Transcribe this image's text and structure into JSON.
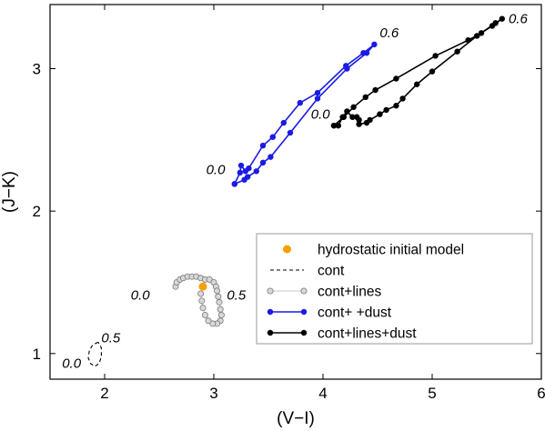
{
  "chart_data": {
    "type": "line",
    "xlabel": "(V−I)",
    "ylabel": "(J−K)",
    "xlim": [
      1.5,
      6.0
    ],
    "ylim": [
      0.82,
      3.45
    ],
    "xticks": [
      2,
      3,
      4,
      5,
      6
    ],
    "yticks": [
      1,
      2,
      3
    ],
    "grid": false,
    "legend_position": "bottom-right",
    "series": [
      {
        "name": "hydrostatic initial model",
        "style": "marker",
        "color": "#f5a000",
        "points": [
          [
            2.9,
            1.47
          ]
        ]
      },
      {
        "name": "cont",
        "style": "dashed",
        "color": "#000000",
        "points": [
          [
            1.94,
            1.08
          ],
          [
            1.89,
            1.06
          ],
          [
            1.86,
            1.02
          ],
          [
            1.85,
            0.97
          ],
          [
            1.87,
            0.93
          ],
          [
            1.91,
            0.91
          ],
          [
            1.95,
            0.93
          ],
          [
            1.97,
            0.98
          ],
          [
            1.97,
            1.04
          ],
          [
            1.94,
            1.08
          ]
        ]
      },
      {
        "name": "cont+lines",
        "style": "line-open-markers",
        "color": "#a8a8a8",
        "points": [
          [
            2.65,
            1.47
          ],
          [
            2.66,
            1.5
          ],
          [
            2.69,
            1.52
          ],
          [
            2.72,
            1.53
          ],
          [
            2.76,
            1.54
          ],
          [
            2.8,
            1.54
          ],
          [
            2.84,
            1.54
          ],
          [
            2.88,
            1.53
          ],
          [
            2.92,
            1.52
          ],
          [
            2.96,
            1.52
          ],
          [
            3.0,
            1.5
          ],
          [
            3.02,
            1.47
          ],
          [
            3.03,
            1.44
          ],
          [
            3.04,
            1.4
          ],
          [
            3.05,
            1.36
          ],
          [
            3.06,
            1.31
          ],
          [
            3.07,
            1.27
          ],
          [
            3.06,
            1.23
          ],
          [
            3.03,
            1.21
          ],
          [
            2.99,
            1.21
          ],
          [
            2.95,
            1.23
          ],
          [
            2.92,
            1.27
          ],
          [
            2.9,
            1.32
          ],
          [
            2.89,
            1.37
          ],
          [
            2.88,
            1.42
          ]
        ]
      },
      {
        "name": "cont+   +dust",
        "style": "line-filled-markers",
        "color": "#1a1ae6",
        "points": [
          [
            3.19,
            2.19
          ],
          [
            3.24,
            2.27
          ],
          [
            3.25,
            2.32
          ],
          [
            3.29,
            2.28
          ],
          [
            3.32,
            2.3
          ],
          [
            3.45,
            2.46
          ],
          [
            3.54,
            2.52
          ],
          [
            3.64,
            2.62
          ],
          [
            3.79,
            2.76
          ],
          [
            3.95,
            2.83
          ],
          [
            4.21,
            3.02
          ],
          [
            4.37,
            3.11
          ],
          [
            4.47,
            3.17
          ],
          [
            4.4,
            3.11
          ],
          [
            4.22,
            3.0
          ],
          [
            3.95,
            2.79
          ],
          [
            3.7,
            2.55
          ],
          [
            3.52,
            2.38
          ],
          [
            3.45,
            2.34
          ],
          [
            3.39,
            2.28
          ],
          [
            3.31,
            2.24
          ],
          [
            3.28,
            2.22
          ],
          [
            3.19,
            2.19
          ]
        ]
      },
      {
        "name": "cont+lines+dust",
        "style": "line-filled-markers",
        "color": "#000000",
        "points": [
          [
            4.1,
            2.6
          ],
          [
            4.14,
            2.6
          ],
          [
            4.18,
            2.66
          ],
          [
            4.22,
            2.7
          ],
          [
            4.27,
            2.66
          ],
          [
            4.31,
            2.66
          ],
          [
            4.33,
            2.64
          ],
          [
            4.33,
            2.61
          ],
          [
            4.4,
            2.62
          ],
          [
            4.43,
            2.64
          ],
          [
            4.52,
            2.68
          ],
          [
            4.58,
            2.71
          ],
          [
            4.67,
            2.74
          ],
          [
            4.73,
            2.79
          ],
          [
            4.86,
            2.89
          ],
          [
            5.0,
            2.98
          ],
          [
            5.23,
            3.12
          ],
          [
            5.41,
            3.23
          ],
          [
            5.58,
            3.32
          ],
          [
            5.64,
            3.35
          ],
          [
            5.55,
            3.3
          ],
          [
            5.45,
            3.25
          ],
          [
            5.33,
            3.2
          ],
          [
            5.03,
            3.09
          ],
          [
            4.67,
            2.93
          ],
          [
            4.48,
            2.85
          ],
          [
            4.39,
            2.8
          ],
          [
            4.28,
            2.73
          ],
          [
            4.19,
            2.66
          ],
          [
            4.1,
            2.6
          ]
        ]
      }
    ],
    "annotations": [
      {
        "text": "0.6",
        "x": 4.52,
        "y": 3.22
      },
      {
        "text": "0.6",
        "x": 5.7,
        "y": 3.32
      },
      {
        "text": "0.0",
        "x": 2.93,
        "y": 2.26
      },
      {
        "text": "0.0",
        "x": 3.89,
        "y": 2.65
      },
      {
        "text": "0.0",
        "x": 2.24,
        "y": 1.38
      },
      {
        "text": "0.5",
        "x": 3.12,
        "y": 1.38
      },
      {
        "text": "0.5",
        "x": 1.97,
        "y": 1.08
      },
      {
        "text": "0.0",
        "x": 1.61,
        "y": 0.9
      }
    ]
  }
}
